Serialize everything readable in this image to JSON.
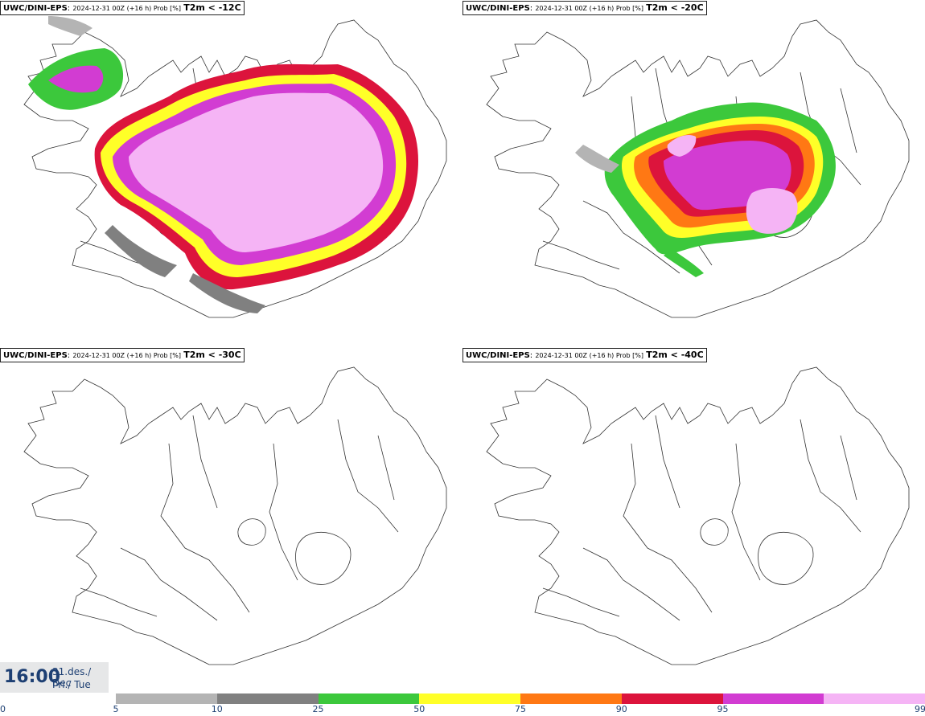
{
  "panels": [
    {
      "model": "UWC/DINI-EPS",
      "meta": "2024-12-31 00Z (+16 h) Prob [%]",
      "threshold": "T2m < -12C"
    },
    {
      "model": "UWC/DINI-EPS",
      "meta": "2024-12-31 00Z (+16 h) Prob [%]",
      "threshold": "T2m < -20C"
    },
    {
      "model": "UWC/DINI-EPS",
      "meta": "2024-12-31 00Z (+16 h) Prob [%]",
      "threshold": "T2m < -30C"
    },
    {
      "model": "UWC/DINI-EPS",
      "meta": "2024-12-31 00Z (+16 h) Prob [%]",
      "threshold": "T2m < -40C"
    }
  ],
  "valid_time": {
    "time": "16:00",
    "date_line1": "31.des./ Dec",
    "date_line2": "Þri./ Tue"
  },
  "legend": {
    "ticks": [
      "0",
      "5",
      "10",
      "25",
      "50",
      "75",
      "90",
      "95",
      "99"
    ],
    "colors": [
      "#b4b4b4",
      "#808080",
      "#3cc83c",
      "#ffff28",
      "#ff7814",
      "#dc143c",
      "#d23cd2",
      "#f5b4f5"
    ]
  },
  "map_colors": {
    "coast": "#333333",
    "light_gray": "#b4b4b4",
    "dark_gray": "#808080",
    "green": "#3cc83c",
    "yellow": "#ffff28",
    "orange": "#ff7814",
    "red": "#dc143c",
    "magenta": "#d23cd2",
    "pink": "#f5b4f5"
  }
}
